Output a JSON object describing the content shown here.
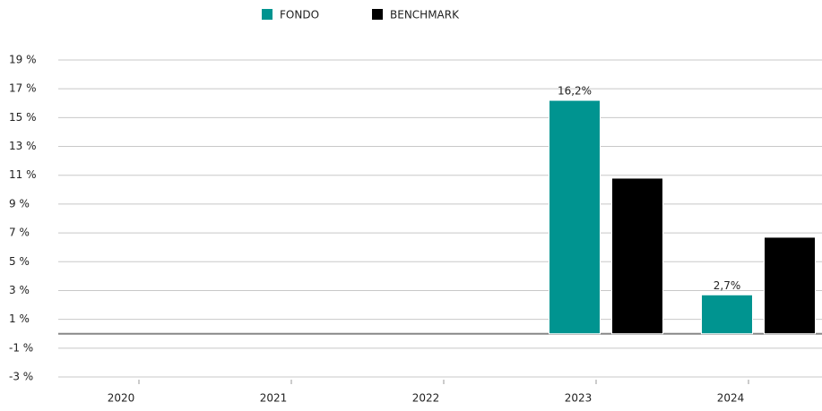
{
  "chart_data": {
    "type": "bar",
    "categories": [
      "2020",
      "2021",
      "2022",
      "2023",
      "2024"
    ],
    "series": [
      {
        "name": "FONDO",
        "color": "#009490",
        "values": [
          null,
          null,
          null,
          16.2,
          2.7
        ],
        "value_labels": [
          null,
          null,
          null,
          "16,2%",
          "2,7%"
        ]
      },
      {
        "name": "BENCHMARK",
        "color": "#000000",
        "values": [
          null,
          null,
          null,
          10.8,
          6.7
        ]
      }
    ],
    "ylim": [
      -3,
      19
    ],
    "yticks": [
      {
        "value": -3,
        "label": "-3 %"
      },
      {
        "value": -1,
        "label": "-1 %"
      },
      {
        "value": 1,
        "label": "1 %"
      },
      {
        "value": 3,
        "label": "3 %"
      },
      {
        "value": 5,
        "label": "5 %"
      },
      {
        "value": 7,
        "label": "7 %"
      },
      {
        "value": 9,
        "label": "9 %"
      },
      {
        "value": 11,
        "label": "11 %"
      },
      {
        "value": 13,
        "label": "13 %"
      },
      {
        "value": 15,
        "label": "15 %"
      },
      {
        "value": 17,
        "label": "17 %"
      },
      {
        "value": 19,
        "label": "19 %"
      }
    ],
    "grid": true,
    "legend": "top"
  }
}
